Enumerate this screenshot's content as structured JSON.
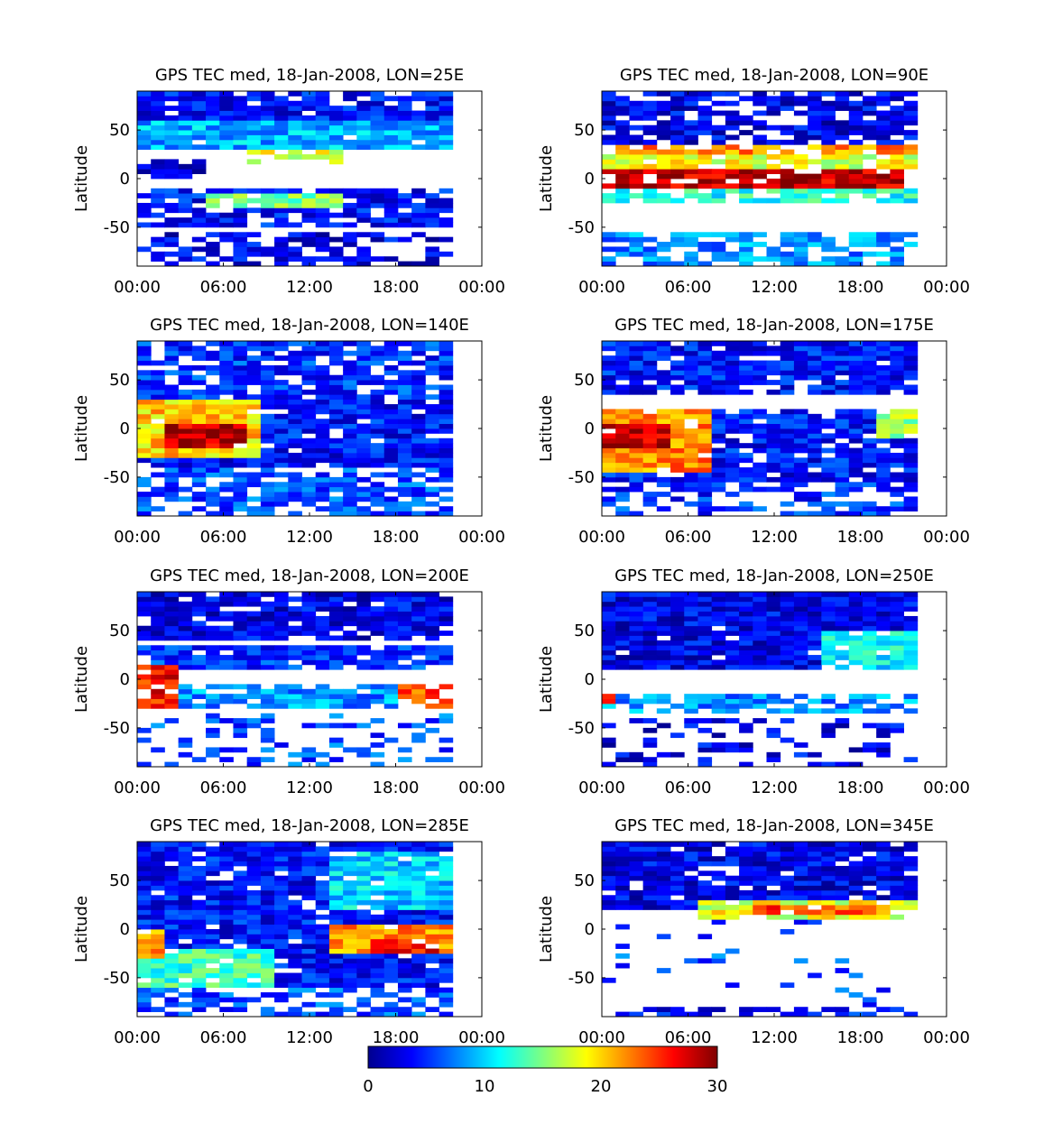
{
  "chart_data": [
    {
      "type": "heatmap",
      "title": "GPS TEC med, 18-Jan-2008, LON=25E",
      "ylabel": "Latitude",
      "xlim": [
        0,
        24
      ],
      "ylim": [
        -90,
        90
      ],
      "x_ticks": [
        "00:00",
        "06:00",
        "12:00",
        "18:00",
        "00:00"
      ],
      "y_ticks": [
        "50",
        "0",
        "-50"
      ],
      "clim": [
        0,
        30
      ],
      "colormap": "jet",
      "features": [
        {
          "lat": [
            -88,
            -55
          ],
          "hours": [
            0,
            23
          ],
          "tec": 3,
          "cover": 0.6
        },
        {
          "lat": [
            -50,
            -12
          ],
          "hours": [
            0,
            23
          ],
          "tec": 4,
          "cover": 0.75
        },
        {
          "lat": [
            -28,
            -14
          ],
          "hours": [
            5,
            15
          ],
          "tec": 15,
          "cover": 0.85
        },
        {
          "lat": [
            16,
            30
          ],
          "hours": [
            8,
            15
          ],
          "tec": 18,
          "cover": 0.55
        },
        {
          "lat": [
            0,
            22
          ],
          "hours": [
            0,
            5
          ],
          "tec": 2,
          "cover": 0.8
        },
        {
          "lat": [
            30,
            62
          ],
          "hours": [
            0,
            23
          ],
          "tec": 9,
          "cover": 0.95
        },
        {
          "lat": [
            62,
            90
          ],
          "hours": [
            0,
            23
          ],
          "tec": 4,
          "cover": 0.85
        }
      ]
    },
    {
      "type": "heatmap",
      "title": "GPS TEC med, 18-Jan-2008, LON=90E",
      "ylabel": "Latitude",
      "xlim": [
        0,
        24
      ],
      "ylim": [
        -90,
        90
      ],
      "x_ticks": [
        "00:00",
        "06:00",
        "12:00",
        "18:00",
        "00:00"
      ],
      "y_ticks": [
        "50",
        "0",
        "-50"
      ],
      "clim": [
        0,
        30
      ],
      "colormap": "jet",
      "features": [
        {
          "lat": [
            -90,
            -55
          ],
          "hours": [
            0,
            23
          ],
          "tec": 8,
          "cover": 0.6
        },
        {
          "lat": [
            -25,
            -10
          ],
          "hours": [
            0,
            23
          ],
          "tec": 12,
          "cover": 0.75
        },
        {
          "lat": [
            -10,
            12
          ],
          "hours": [
            0,
            22
          ],
          "tec": 28,
          "cover": 0.95
        },
        {
          "lat": [
            12,
            25
          ],
          "hours": [
            0,
            23
          ],
          "tec": 18,
          "cover": 0.85
        },
        {
          "lat": [
            25,
            35
          ],
          "hours": [
            0,
            23
          ],
          "tec": 22,
          "cover": 0.75
        },
        {
          "lat": [
            35,
            90
          ],
          "hours": [
            0,
            23
          ],
          "tec": 3,
          "cover": 0.75
        }
      ]
    },
    {
      "type": "heatmap",
      "title": "GPS TEC med, 18-Jan-2008, LON=140E",
      "ylabel": "Latitude",
      "xlim": [
        0,
        24
      ],
      "ylim": [
        -90,
        90
      ],
      "x_ticks": [
        "00:00",
        "06:00",
        "12:00",
        "18:00",
        "00:00"
      ],
      "y_ticks": [
        "50",
        "0",
        "-50"
      ],
      "clim": [
        0,
        30
      ],
      "colormap": "jet",
      "features": [
        {
          "lat": [
            -90,
            -40
          ],
          "hours": [
            0,
            23
          ],
          "tec": 6,
          "cover": 0.7
        },
        {
          "lat": [
            -40,
            30
          ],
          "hours": [
            0,
            23
          ],
          "tec": 4,
          "cover": 0.92
        },
        {
          "lat": [
            -30,
            30
          ],
          "hours": [
            0,
            9
          ],
          "tec": 20,
          "cover": 0.95
        },
        {
          "lat": [
            -20,
            5
          ],
          "hours": [
            2,
            8
          ],
          "tec": 28,
          "cover": 0.95
        },
        {
          "lat": [
            30,
            90
          ],
          "hours": [
            0,
            23
          ],
          "tec": 5,
          "cover": 0.8
        }
      ]
    },
    {
      "type": "heatmap",
      "title": "GPS TEC med, 18-Jan-2008, LON=175E",
      "ylabel": "Latitude",
      "xlim": [
        0,
        24
      ],
      "ylim": [
        -90,
        90
      ],
      "x_ticks": [
        "00:00",
        "06:00",
        "12:00",
        "18:00",
        "00:00"
      ],
      "y_ticks": [
        "50",
        "0",
        "-50"
      ],
      "clim": [
        0,
        30
      ],
      "colormap": "jet",
      "features": [
        {
          "lat": [
            35,
            90
          ],
          "hours": [
            0,
            23
          ],
          "tec": 4,
          "cover": 0.9
        },
        {
          "lat": [
            -60,
            20
          ],
          "hours": [
            0,
            23
          ],
          "tec": 4,
          "cover": 0.85
        },
        {
          "lat": [
            -45,
            20
          ],
          "hours": [
            0,
            8
          ],
          "tec": 22,
          "cover": 0.95
        },
        {
          "lat": [
            -20,
            5
          ],
          "hours": [
            0,
            5
          ],
          "tec": 28,
          "cover": 0.95
        },
        {
          "lat": [
            -10,
            20
          ],
          "hours": [
            20,
            23
          ],
          "tec": 16,
          "cover": 0.9
        },
        {
          "lat": [
            -90,
            -55
          ],
          "hours": [
            0,
            23
          ],
          "tec": 5,
          "cover": 0.55
        }
      ]
    },
    {
      "type": "heatmap",
      "title": "GPS TEC med, 18-Jan-2008, LON=200E",
      "ylabel": "Latitude",
      "xlim": [
        0,
        24
      ],
      "ylim": [
        -90,
        90
      ],
      "x_ticks": [
        "00:00",
        "06:00",
        "12:00",
        "18:00",
        "00:00"
      ],
      "y_ticks": [
        "50",
        "0",
        "-50"
      ],
      "clim": [
        0,
        30
      ],
      "colormap": "jet",
      "features": [
        {
          "lat": [
            40,
            90
          ],
          "hours": [
            0,
            23
          ],
          "tec": 3,
          "cover": 0.9
        },
        {
          "lat": [
            10,
            35
          ],
          "hours": [
            0,
            23
          ],
          "tec": 5,
          "cover": 0.85
        },
        {
          "lat": [
            -30,
            -5
          ],
          "hours": [
            0,
            23
          ],
          "tec": 8,
          "cover": 0.85
        },
        {
          "lat": [
            -30,
            15
          ],
          "hours": [
            0,
            3
          ],
          "tec": 26,
          "cover": 0.7
        },
        {
          "lat": [
            -30,
            -5
          ],
          "hours": [
            19,
            23
          ],
          "tec": 24,
          "cover": 0.8
        },
        {
          "lat": [
            -90,
            -35
          ],
          "hours": [
            0,
            23
          ],
          "tec": 6,
          "cover": 0.35
        }
      ]
    },
    {
      "type": "heatmap",
      "title": "GPS TEC med, 18-Jan-2008, LON=250E",
      "ylabel": "Latitude",
      "xlim": [
        0,
        24
      ],
      "ylim": [
        -90,
        90
      ],
      "x_ticks": [
        "00:00",
        "06:00",
        "12:00",
        "18:00",
        "00:00"
      ],
      "y_ticks": [
        "50",
        "0",
        "-50"
      ],
      "clim": [
        0,
        30
      ],
      "colormap": "jet",
      "features": [
        {
          "lat": [
            10,
            90
          ],
          "hours": [
            0,
            23
          ],
          "tec": 3,
          "cover": 0.97
        },
        {
          "lat": [
            10,
            50
          ],
          "hours": [
            16,
            23
          ],
          "tec": 11,
          "cover": 0.9
        },
        {
          "lat": [
            -35,
            -15
          ],
          "hours": [
            0,
            23
          ],
          "tec": 8,
          "cover": 0.75
        },
        {
          "lat": [
            -25,
            -15
          ],
          "hours": [
            0,
            1
          ],
          "tec": 27,
          "cover": 0.9
        },
        {
          "lat": [
            -90,
            -40
          ],
          "hours": [
            0,
            23
          ],
          "tec": 3,
          "cover": 0.3
        }
      ]
    },
    {
      "type": "heatmap",
      "title": "GPS TEC med, 18-Jan-2008, LON=285E",
      "ylabel": "Latitude",
      "xlim": [
        0,
        24
      ],
      "ylim": [
        -90,
        90
      ],
      "x_ticks": [
        "00:00",
        "06:00",
        "12:00",
        "18:00",
        "00:00"
      ],
      "y_ticks": [
        "50",
        "0",
        "-50"
      ],
      "clim": [
        0,
        30
      ],
      "colormap": "jet",
      "features": [
        {
          "lat": [
            -90,
            90
          ],
          "hours": [
            0,
            23
          ],
          "tec": 4,
          "cover": 0.9
        },
        {
          "lat": [
            -60,
            -20
          ],
          "hours": [
            0,
            10
          ],
          "tec": 13,
          "cover": 0.9
        },
        {
          "lat": [
            -30,
            0
          ],
          "hours": [
            0,
            2
          ],
          "tec": 22,
          "cover": 0.9
        },
        {
          "lat": [
            -25,
            5
          ],
          "hours": [
            14,
            23
          ],
          "tec": 22,
          "cover": 0.95
        },
        {
          "lat": [
            -25,
            -10
          ],
          "hours": [
            17,
            22
          ],
          "tec": 26,
          "cover": 0.9
        },
        {
          "lat": [
            20,
            80
          ],
          "hours": [
            14,
            23
          ],
          "tec": 10,
          "cover": 0.9
        },
        {
          "lat": [
            -90,
            -60
          ],
          "hours": [
            0,
            23
          ],
          "tec": 6,
          "cover": 0.55
        }
      ]
    },
    {
      "type": "heatmap",
      "title": "GPS TEC med, 18-Jan-2008, LON=345E",
      "ylabel": "Latitude",
      "xlim": [
        0,
        24
      ],
      "ylim": [
        -90,
        90
      ],
      "x_ticks": [
        "00:00",
        "06:00",
        "12:00",
        "18:00",
        "00:00"
      ],
      "y_ticks": [
        "50",
        "0",
        "-50"
      ],
      "clim": [
        0,
        30
      ],
      "colormap": "jet",
      "features": [
        {
          "lat": [
            20,
            90
          ],
          "hours": [
            0,
            23
          ],
          "tec": 3,
          "cover": 0.92
        },
        {
          "lat": [
            10,
            30
          ],
          "hours": [
            7,
            23
          ],
          "tec": 18,
          "cover": 0.8
        },
        {
          "lat": [
            15,
            25
          ],
          "hours": [
            11,
            20
          ],
          "tec": 24,
          "cover": 0.9
        },
        {
          "lat": [
            -90,
            10
          ],
          "hours": [
            0,
            23
          ],
          "tec": 6,
          "cover": 0.07
        },
        {
          "lat": [
            -90,
            -80
          ],
          "hours": [
            0,
            23
          ],
          "tec": 4,
          "cover": 0.55
        }
      ]
    }
  ],
  "colorbar": {
    "range": [
      0,
      30
    ],
    "ticks": [
      "0",
      "10",
      "20",
      "30"
    ]
  }
}
